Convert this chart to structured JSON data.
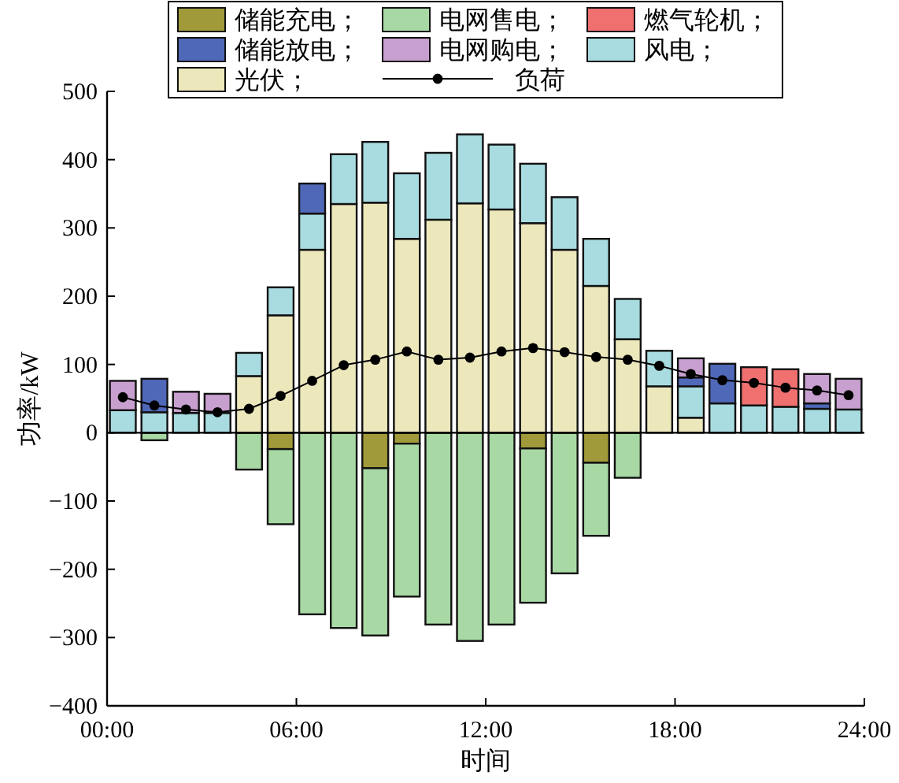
{
  "chart_data": {
    "type": "bar",
    "stacked": true,
    "xlabel": "时间",
    "ylabel": "功率/kW",
    "x": [
      0.5,
      1.5,
      2.5,
      3.5,
      4.5,
      5.5,
      6.5,
      7.5,
      8.5,
      9.5,
      10.5,
      11.5,
      12.5,
      13.5,
      14.5,
      15.5,
      16.5,
      17.5,
      18.5,
      19.5,
      20.5,
      21.5,
      22.5,
      23.5
    ],
    "xlim": [
      0,
      24
    ],
    "xticks": [
      {
        "value": 0,
        "label": "00:00"
      },
      {
        "value": 6,
        "label": "06:00"
      },
      {
        "value": 12,
        "label": "12:00"
      },
      {
        "value": 18,
        "label": "18:00"
      },
      {
        "value": 24,
        "label": "24:00"
      }
    ],
    "ylim": [
      -400,
      500
    ],
    "yticks": [
      -400,
      -300,
      -200,
      -100,
      0,
      100,
      200,
      300,
      400,
      500
    ],
    "grid": false,
    "legend": "top",
    "ref_lines": [
      {
        "axis": "y",
        "value": 0,
        "color": "#000000"
      }
    ],
    "series": [
      {
        "name": "储能充电；",
        "color": "#a09a3a",
        "values": [
          null,
          null,
          null,
          null,
          null,
          -24,
          null,
          null,
          -52,
          -16,
          null,
          null,
          null,
          -23,
          null,
          -44,
          null,
          null,
          null,
          null,
          null,
          null,
          null,
          null
        ]
      },
      {
        "name": "电网售电；",
        "color": "#a8d8a4",
        "values": [
          null,
          -11,
          null,
          null,
          -54,
          -110,
          -266,
          -286,
          -245,
          -224,
          -281,
          -305,
          -281,
          -226,
          -206,
          -107,
          -66,
          null,
          null,
          null,
          null,
          null,
          null,
          null
        ]
      },
      {
        "name": "光伏；",
        "color": "#ece8bc",
        "values": [
          null,
          null,
          null,
          null,
          83,
          172,
          268,
          335,
          337,
          284,
          312,
          336,
          327,
          307,
          268,
          215,
          137,
          68,
          22,
          null,
          null,
          null,
          null,
          null
        ]
      },
      {
        "name": "风电；",
        "color": "#a8dce0",
        "values": [
          33,
          30,
          29,
          29,
          34,
          41,
          53,
          73,
          89,
          96,
          98,
          101,
          95,
          87,
          77,
          69,
          59,
          52,
          46,
          43,
          40,
          38,
          35,
          34
        ]
      },
      {
        "name": "储能放电；",
        "color": "#5068b8",
        "values": [
          null,
          49,
          null,
          null,
          null,
          null,
          44,
          null,
          null,
          null,
          null,
          null,
          null,
          null,
          null,
          null,
          null,
          null,
          13,
          58,
          null,
          null,
          8,
          null
        ]
      },
      {
        "name": "电网购电；",
        "color": "#c8a0d0",
        "values": [
          43,
          null,
          31,
          28,
          null,
          null,
          null,
          null,
          null,
          null,
          null,
          null,
          null,
          null,
          null,
          null,
          null,
          null,
          28,
          null,
          null,
          null,
          43,
          45
        ]
      },
      {
        "name": "燃气轮机；",
        "color": "#f07070",
        "values": [
          null,
          null,
          null,
          null,
          null,
          null,
          null,
          null,
          null,
          null,
          null,
          null,
          null,
          null,
          null,
          null,
          null,
          null,
          null,
          null,
          56,
          55,
          null,
          null
        ]
      },
      {
        "name": "负荷",
        "type": "line",
        "color": "#000000",
        "marker": "circle",
        "values": [
          52,
          40,
          34,
          30,
          35,
          54,
          76,
          99,
          107,
          119,
          107,
          110,
          119,
          124,
          118,
          111,
          107,
          98,
          86,
          77,
          73,
          66,
          62,
          55
        ]
      }
    ]
  }
}
